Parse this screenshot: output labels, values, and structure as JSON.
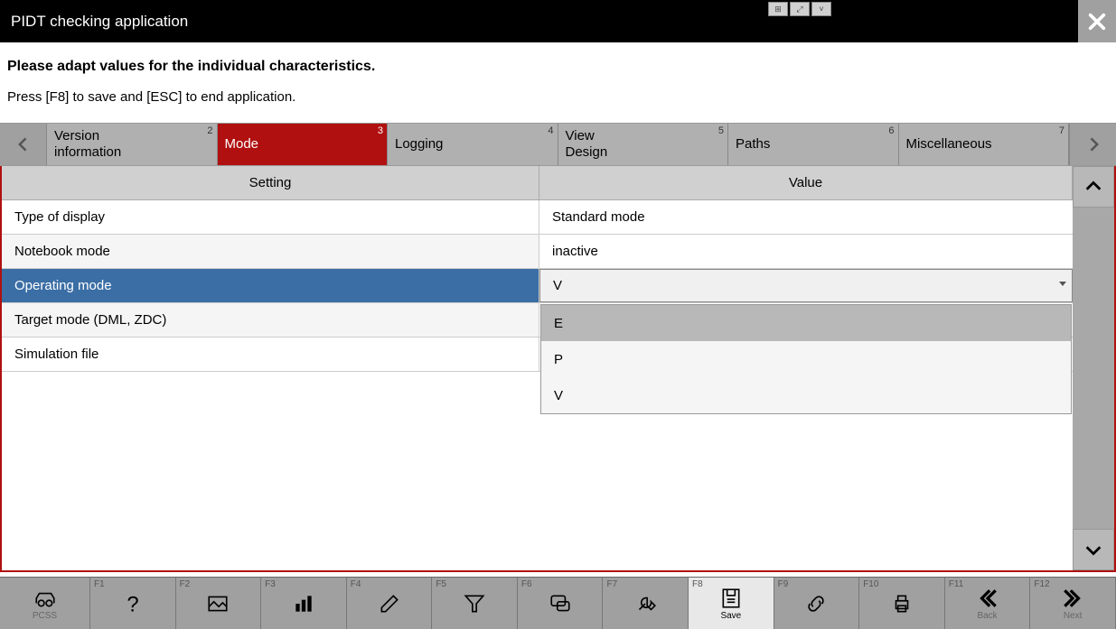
{
  "title": "PIDT checking application",
  "instructions": {
    "line1": "Please adapt values for the individual characteristics.",
    "line2": "Press [F8] to save and [ESC] to end application."
  },
  "tabs": [
    {
      "num": "2",
      "label": "Version\ninformation",
      "active": false
    },
    {
      "num": "3",
      "label": "Mode",
      "active": true
    },
    {
      "num": "4",
      "label": "Logging",
      "active": false
    },
    {
      "num": "5",
      "label": "View\nDesign",
      "active": false
    },
    {
      "num": "6",
      "label": "Paths",
      "active": false
    },
    {
      "num": "7",
      "label": "Miscellaneous",
      "active": false
    }
  ],
  "table": {
    "headers": {
      "setting": "Setting",
      "value": "Value"
    },
    "rows": [
      {
        "setting": "Type of display",
        "value": "Standard mode",
        "selected": false
      },
      {
        "setting": "Notebook mode",
        "value": "inactive",
        "selected": false
      },
      {
        "setting": "Operating mode",
        "value": "V",
        "selected": true,
        "dropdown": true
      },
      {
        "setting": "Target mode (DML, ZDC)",
        "value": "",
        "selected": false
      },
      {
        "setting": "Simulation file",
        "value": "",
        "selected": false
      }
    ],
    "dropdown_options": [
      {
        "label": "E",
        "highlighted": true
      },
      {
        "label": "P",
        "highlighted": false
      },
      {
        "label": "V",
        "highlighted": false
      }
    ]
  },
  "footer": [
    {
      "key": "",
      "label": "PCSS",
      "icon": "car",
      "active": false
    },
    {
      "key": "F1",
      "label": "",
      "icon": "question",
      "active": false
    },
    {
      "key": "F2",
      "label": "",
      "icon": "image",
      "active": false
    },
    {
      "key": "F3",
      "label": "",
      "icon": "chart",
      "active": false
    },
    {
      "key": "F4",
      "label": "",
      "icon": "edit",
      "active": false
    },
    {
      "key": "F5",
      "label": "",
      "icon": "filter",
      "active": false
    },
    {
      "key": "F6",
      "label": "",
      "icon": "chat",
      "active": false
    },
    {
      "key": "F7",
      "label": "",
      "icon": "wrench",
      "active": false
    },
    {
      "key": "F8",
      "label": "Save",
      "icon": "save",
      "active": true
    },
    {
      "key": "F9",
      "label": "",
      "icon": "link",
      "active": false
    },
    {
      "key": "F10",
      "label": "",
      "icon": "print",
      "active": false
    },
    {
      "key": "F11",
      "label": "Back",
      "icon": "back",
      "active": false
    },
    {
      "key": "F12",
      "label": "Next",
      "icon": "next",
      "active": false
    }
  ],
  "colors": {
    "accent": "#b01010",
    "selected_row": "#3b6ea5",
    "titlebar": "#000000"
  }
}
